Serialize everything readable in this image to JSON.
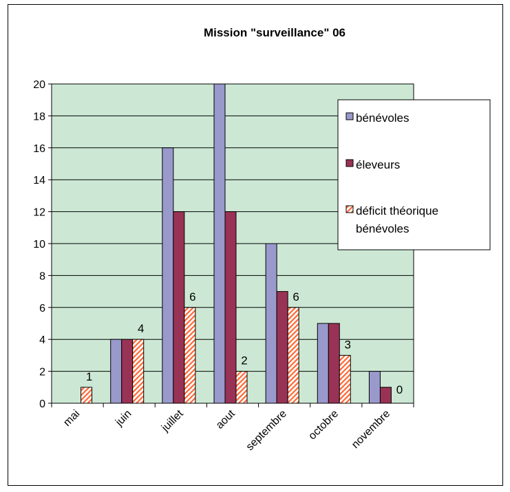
{
  "chart_data": {
    "type": "bar",
    "title": "Mission \"surveillance\" 06",
    "categories": [
      "mai",
      "juin",
      "juillet",
      "aout",
      "septembre",
      "octobre",
      "novembre"
    ],
    "series": [
      {
        "name": "bénévoles",
        "values": [
          0,
          4,
          16,
          20,
          10,
          5,
          2
        ],
        "color": "#9999cc",
        "pattern": "solid"
      },
      {
        "name": "éleveurs",
        "values": [
          0,
          4,
          12,
          12,
          7,
          5,
          1
        ],
        "color": "#993355",
        "pattern": "solid"
      },
      {
        "name": "déficit théorique bénévoles",
        "values": [
          1,
          4,
          6,
          2,
          6,
          3,
          0
        ],
        "color": "#ff6633",
        "pattern": "hatched",
        "data_labels": [
          "1",
          "4",
          "6",
          "2",
          "6",
          "3",
          "0"
        ]
      }
    ],
    "legend_lines": [
      [
        "bénévoles"
      ],
      [
        "éleveurs"
      ],
      [
        "déficit théorique",
        "bénévoles"
      ]
    ],
    "ylim": [
      0,
      20
    ],
    "yticks": [
      "0",
      "2",
      "4",
      "6",
      "8",
      "10",
      "12",
      "14",
      "16",
      "18",
      "20"
    ],
    "grid": true,
    "plot_background": "#cce8d4",
    "legend_position": "right"
  }
}
